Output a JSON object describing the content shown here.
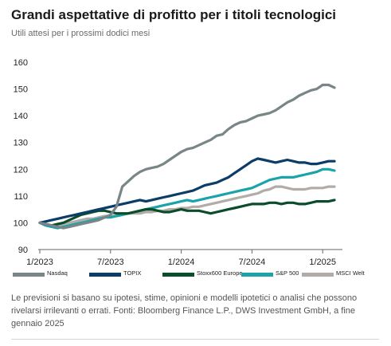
{
  "header": {
    "title": "Grandi aspettative di profitto per i titoli tecnologici",
    "subtitle": "Utili attesi per i prossimi dodici mesi"
  },
  "footer": {
    "source": "Le previsioni si basano su ipotesi, stime, opinioni e modelli ipotetici o analisi che possono rivelarsi irrilevanti o errati. Fonti: Bloomberg Finance L.P., DWS Investment GmbH, a fine gennaio 2025"
  },
  "chart_data": {
    "type": "line",
    "title": "Grandi aspettative di profitto per i titoli tecnologici",
    "subtitle": "Utili attesi per i prossimi dodici mesi",
    "xlabel": "",
    "ylabel": "",
    "ylim": [
      90,
      160
    ],
    "yticks": [
      90,
      100,
      110,
      120,
      130,
      140,
      150,
      160
    ],
    "xlim": [
      0,
      25
    ],
    "xticks": [
      {
        "value": 0,
        "label": "1/2023"
      },
      {
        "value": 6,
        "label": "7/2023"
      },
      {
        "value": 12,
        "label": "1/2024"
      },
      {
        "value": 18,
        "label": "7/2024"
      },
      {
        "value": 24,
        "label": "1/2025"
      }
    ],
    "grid": false,
    "legend": "bottom",
    "x": [
      0,
      0.5,
      1,
      1.5,
      2,
      2.5,
      3,
      3.5,
      4,
      4.5,
      5,
      5.5,
      6,
      6.5,
      7,
      7.5,
      8,
      8.5,
      9,
      9.5,
      10,
      10.5,
      11,
      11.5,
      12,
      12.5,
      13,
      13.5,
      14,
      14.5,
      15,
      15.5,
      16,
      16.5,
      17,
      17.5,
      18,
      18.5,
      19,
      19.5,
      20,
      20.5,
      21,
      21.5,
      22,
      22.5,
      23,
      23.5,
      24,
      24.5,
      25
    ],
    "series": [
      {
        "name": "Nasdaq",
        "color": "#7a8588",
        "values": [
          100,
          99.5,
          99,
          98.5,
          98,
          98.5,
          99,
          99.5,
          100,
          100.5,
          101,
          102,
          103,
          106,
          113.5,
          115.5,
          117.5,
          119,
          120,
          120.5,
          121,
          122,
          123.5,
          125,
          126.5,
          127.5,
          128,
          129,
          130,
          131,
          132.5,
          133,
          135,
          136.5,
          137.5,
          138,
          139,
          140,
          140.5,
          141,
          142,
          143.5,
          145,
          146,
          147.5,
          148.5,
          149.5,
          150,
          151.5,
          151.5,
          150.5
        ]
      },
      {
        "name": "TOPIX",
        "color": "#0c3c68",
        "values": [
          100,
          100.5,
          101,
          101.5,
          102,
          102.5,
          103,
          103.5,
          104,
          104.5,
          105,
          105.5,
          106,
          106.5,
          107,
          107.5,
          108,
          108.5,
          108,
          108.5,
          109,
          109.5,
          110,
          110.5,
          111,
          111.5,
          112,
          113,
          114,
          114.5,
          115,
          116,
          117,
          118.5,
          120,
          121.5,
          123,
          124,
          123.5,
          123,
          122.5,
          123,
          123.5,
          123,
          122.5,
          122.5,
          122,
          122,
          122.5,
          123,
          123
        ]
      },
      {
        "name": "Stoxx600 Europe",
        "color": "#0b4d2a",
        "values": [
          100,
          99.5,
          99,
          99.5,
          100,
          101,
          102,
          103,
          103.5,
          104,
          104.5,
          104.5,
          104,
          103.5,
          103.5,
          103.5,
          104,
          104.5,
          105,
          105,
          104.5,
          104,
          104,
          104.5,
          105,
          104.5,
          104.5,
          104.5,
          104,
          103.5,
          104,
          104.5,
          105,
          105.5,
          106,
          106.5,
          107,
          107,
          107,
          107.5,
          107.5,
          107,
          107.5,
          107.5,
          107,
          107,
          107.5,
          108,
          108,
          108,
          108.5
        ]
      },
      {
        "name": "S&P 500",
        "color": "#1aa3a8",
        "values": [
          100,
          99,
          98.5,
          98,
          98.5,
          99,
          99.5,
          100,
          100.5,
          101,
          101.5,
          102,
          102,
          102.5,
          103,
          103.5,
          104,
          104.5,
          105,
          105.5,
          106,
          106.5,
          107,
          107.5,
          108,
          108.5,
          108,
          108.5,
          109,
          109.5,
          110,
          110.5,
          111,
          111.5,
          112,
          112.5,
          113,
          114,
          115,
          116,
          116.5,
          117,
          117,
          117,
          117.5,
          118,
          118.5,
          119,
          120,
          120,
          119.5
        ]
      },
      {
        "name": "MSCI Welt",
        "color": "#b2aca7",
        "values": [
          100,
          99.5,
          99,
          99,
          99.5,
          100,
          100.5,
          101,
          101.5,
          101.5,
          102,
          102.5,
          102.5,
          102.5,
          103,
          103.5,
          103.5,
          103.5,
          104,
          104,
          104.5,
          104.5,
          105,
          105,
          105.5,
          105.5,
          106,
          106,
          106.5,
          107,
          107.5,
          108,
          108.5,
          109,
          109.5,
          110,
          110.5,
          111,
          112,
          112.5,
          113.5,
          113.5,
          113,
          112.5,
          112.5,
          112.5,
          113,
          113,
          113,
          113.5,
          113.5
        ]
      }
    ]
  }
}
